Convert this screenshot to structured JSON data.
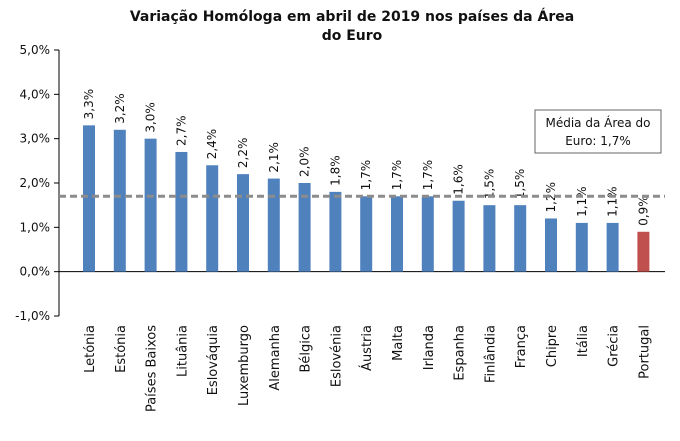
{
  "chart_data": {
    "type": "bar",
    "title_line1": "Variação Homóloga em abril de 2019 nos países da Área",
    "title_line2": "do Euro",
    "categories": [
      "Letónia",
      "Estónia",
      "Países Baixos",
      "Lituânia",
      "Eslováquia",
      "Luxemburgo",
      "Alemanha",
      "Bélgica",
      "Eslovénia",
      "Áustria",
      "Malta",
      "Irlanda",
      "Espanha",
      "Finlândia",
      "França",
      "Chipre",
      "Itália",
      "Grécia",
      "Portugal"
    ],
    "values": [
      3.3,
      3.2,
      3.0,
      2.7,
      2.4,
      2.2,
      2.1,
      2.0,
      1.8,
      1.7,
      1.7,
      1.7,
      1.6,
      1.5,
      1.5,
      1.2,
      1.1,
      1.1,
      0.9
    ],
    "data_labels": [
      "3,3%",
      "3,2%",
      "3,0%",
      "2,7%",
      "2,4%",
      "2,2%",
      "2,1%",
      "2,0%",
      "1,8%",
      "1,7%",
      "1,7%",
      "1,7%",
      "1,6%",
      "1,5%",
      "1,5%",
      "1,2%",
      "1,1%",
      "1,1%",
      "0,9%"
    ],
    "y_ticks": [
      -1,
      0,
      1,
      2,
      3,
      4,
      5
    ],
    "y_tick_labels": [
      "-1,0%",
      "0,0%",
      "1,0%",
      "2,0%",
      "3,0%",
      "4,0%",
      "5,0%"
    ],
    "ylim": [
      -1,
      5
    ],
    "average": 1.7,
    "average_label_line1": "Média da Área do",
    "average_label_line2": "Euro: 1,7%",
    "grid": false,
    "colors": {
      "bar": "#4F81BD",
      "highlight": "#C0504D",
      "average_line": "#8C8C8C"
    },
    "highlight_category": "Portugal"
  }
}
